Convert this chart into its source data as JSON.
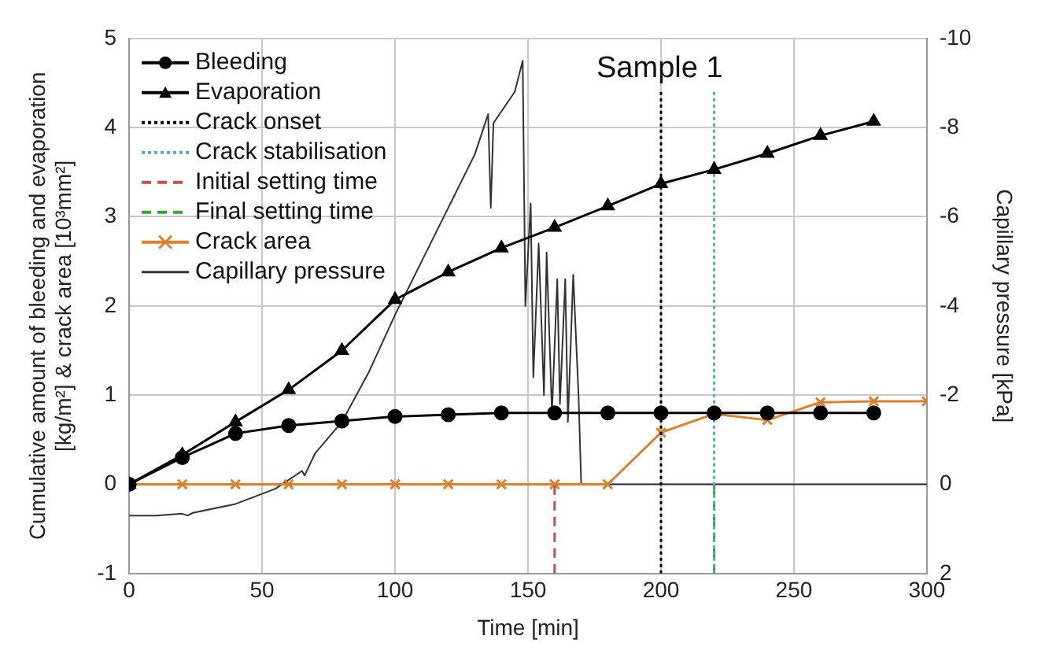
{
  "chart_data": {
    "type": "line",
    "xlabel": "Time [min]",
    "ylabel": "Cumulative amount of bleeding and evaporation\n[kg/m²] & crack area [10³mm²]",
    "y2label": "Capillary pressure [kPa]",
    "annotations": [
      "Sample 1"
    ],
    "xlim": [
      0,
      300
    ],
    "xticks": [
      0,
      50,
      100,
      150,
      200,
      250,
      300
    ],
    "ylim": [
      -1,
      5
    ],
    "yticks": [
      -1,
      0,
      1,
      2,
      3,
      4,
      5
    ],
    "y2lim": [
      2,
      -10
    ],
    "y2ticks": [
      2,
      0,
      -2,
      -4,
      -6,
      -8,
      -10
    ],
    "grid": true,
    "legend": "top left",
    "series": [
      {
        "name": "Bleeding",
        "color": "#000000",
        "marker": "circle",
        "x": [
          0,
          20,
          40,
          60,
          80,
          100,
          120,
          140,
          160,
          180,
          200,
          220,
          240,
          260,
          280
        ],
        "values": [
          0,
          0.3,
          0.57,
          0.66,
          0.71,
          0.76,
          0.78,
          0.8,
          0.8,
          0.8,
          0.8,
          0.8,
          0.8,
          0.8,
          0.8
        ]
      },
      {
        "name": "Evaporation",
        "color": "#000000",
        "marker": "triangle",
        "x": [
          0,
          20,
          40,
          60,
          80,
          100,
          120,
          140,
          160,
          180,
          200,
          220,
          240,
          260,
          280
        ],
        "values": [
          0,
          0.33,
          0.7,
          1.06,
          1.5,
          2.07,
          2.38,
          2.65,
          2.88,
          3.12,
          3.37,
          3.53,
          3.71,
          3.91,
          4.07
        ]
      },
      {
        "name": "Crack onset",
        "color": "#000000",
        "marker": "none",
        "line_style": "dotted",
        "x": [
          200,
          200
        ],
        "values": [
          -1,
          4.4
        ]
      },
      {
        "name": "Crack stabilisation",
        "color": "#4bacc6",
        "marker": "none",
        "line_style": "dotted",
        "x": [
          220,
          220
        ],
        "values": [
          -1,
          4.4
        ]
      },
      {
        "name": "Initial setting time",
        "color": "#c0504d",
        "marker": "none",
        "line_style": "dashed",
        "x": [
          160,
          160
        ],
        "values": [
          -1,
          0
        ]
      },
      {
        "name": "Final setting time",
        "color": "#3aa335",
        "marker": "none",
        "line_style": "dashed",
        "x": [
          220,
          220
        ],
        "values": [
          -1,
          0
        ]
      },
      {
        "name": "Crack area",
        "color": "#d9822b",
        "marker": "cross",
        "x": [
          0,
          20,
          40,
          60,
          80,
          100,
          120,
          140,
          160,
          180,
          200,
          220,
          240,
          260,
          280,
          300
        ],
        "values": [
          0,
          0,
          0,
          0,
          0,
          0,
          0,
          0,
          0,
          0,
          0.58,
          0.79,
          0.72,
          0.92,
          0.93,
          0.93
        ]
      },
      {
        "name": "Capillary pressure",
        "color": "#333333",
        "marker": "none",
        "axis": "y2",
        "x": [
          0,
          10,
          20,
          22,
          24,
          40,
          55,
          60,
          65,
          66,
          70,
          80,
          90,
          100,
          110,
          120,
          130,
          135,
          136,
          137,
          145,
          148,
          149,
          151,
          152,
          154,
          156,
          157,
          159,
          161,
          162,
          164,
          165,
          167,
          169,
          170,
          300
        ],
        "values": [
          0.7,
          0.7,
          0.66,
          0.7,
          0.64,
          0.44,
          0.1,
          -0.1,
          -0.3,
          -0.2,
          -0.7,
          -1.4,
          -2.5,
          -3.8,
          -5,
          -6.2,
          -7.4,
          -8.3,
          -6.2,
          -8.1,
          -8.8,
          -9.5,
          -4,
          -6.3,
          -2.4,
          -5.4,
          -2,
          -5.2,
          -1.6,
          -4.6,
          -1.8,
          -4.6,
          -1.4,
          -4.7,
          -2,
          0,
          0
        ]
      }
    ]
  }
}
